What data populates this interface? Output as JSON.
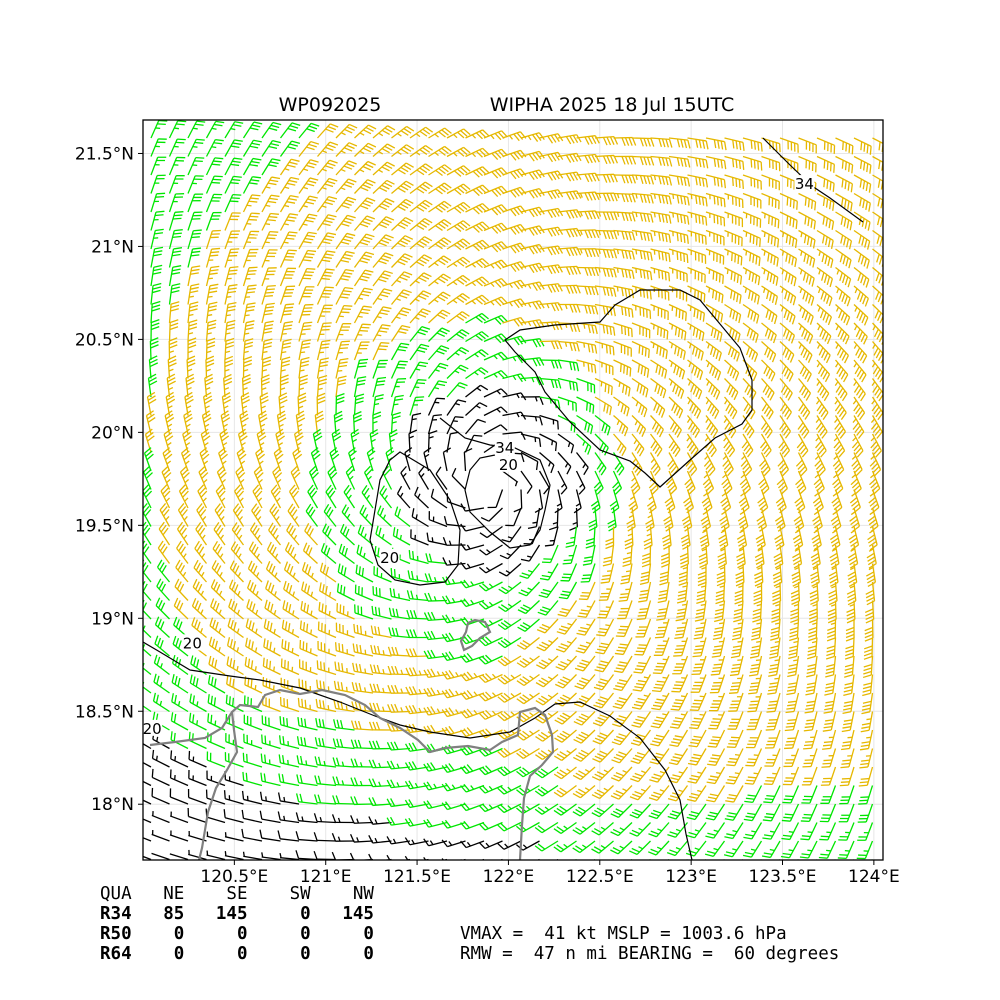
{
  "chart_data": {
    "type": "wind-barb map",
    "storm_id": "WP092025",
    "title": "WIPHA 2025 18 Jul 15UTC",
    "center": {
      "lon": 121.9,
      "lat": 19.75
    },
    "xlim": [
      120.0,
      124.05
    ],
    "ylim": [
      17.7,
      21.68
    ],
    "x_ticks": [
      {
        "value": 120.5,
        "label": "120.5°E"
      },
      {
        "value": 121.0,
        "label": "121°E"
      },
      {
        "value": 121.5,
        "label": "121.5°E"
      },
      {
        "value": 122.0,
        "label": "122°E"
      },
      {
        "value": 122.5,
        "label": "122.5°E"
      },
      {
        "value": 123.0,
        "label": "123°E"
      },
      {
        "value": 123.5,
        "label": "123.5°E"
      },
      {
        "value": 124.0,
        "label": "124°E"
      }
    ],
    "y_ticks": [
      {
        "value": 18.0,
        "label": "18°N"
      },
      {
        "value": 18.5,
        "label": "18.5°N"
      },
      {
        "value": 19.0,
        "label": "19°N"
      },
      {
        "value": 19.5,
        "label": "19.5°N"
      },
      {
        "value": 20.0,
        "label": "20°N"
      },
      {
        "value": 20.5,
        "label": "20.5°N"
      },
      {
        "value": 21.0,
        "label": "21°N"
      },
      {
        "value": 21.5,
        "label": "21.5°N"
      }
    ],
    "grid": true,
    "barb_colors": {
      "below_20": "#000000",
      "20_to_34": "#00e600",
      "above_34": "#e6b800"
    },
    "coast_color": "#808080",
    "contours": [
      {
        "level": "34",
        "label_at": {
          "lon": 121.98,
          "lat": 19.91
        }
      },
      {
        "level": "34",
        "label_at": {
          "lon": 123.62,
          "lat": 21.33
        }
      },
      {
        "level": "20",
        "label_at": {
          "lon": 122.0,
          "lat": 19.82
        }
      },
      {
        "level": "20",
        "label_at": {
          "lon": 121.35,
          "lat": 19.32
        }
      },
      {
        "level": "20",
        "label_at": {
          "lon": 120.27,
          "lat": 18.86
        }
      },
      {
        "level": "20",
        "label_at": {
          "lon": 120.05,
          "lat": 18.4
        }
      }
    ]
  },
  "table": {
    "header": [
      "QUA",
      "NE",
      "SE",
      "SW",
      "NW"
    ],
    "rows": [
      {
        "name": "R34",
        "values": [
          "85",
          "145",
          "0",
          "145"
        ]
      },
      {
        "name": "R50",
        "values": [
          "0",
          "0",
          "0",
          "0"
        ]
      },
      {
        "name": "R64",
        "values": [
          "0",
          "0",
          "0",
          "0"
        ]
      }
    ],
    "vmax_line": "VMAX =  41 kt MSLP = 1003.6 hPa",
    "rmw_line": "RMW =  47 n mi BEARING =  60 degrees"
  }
}
